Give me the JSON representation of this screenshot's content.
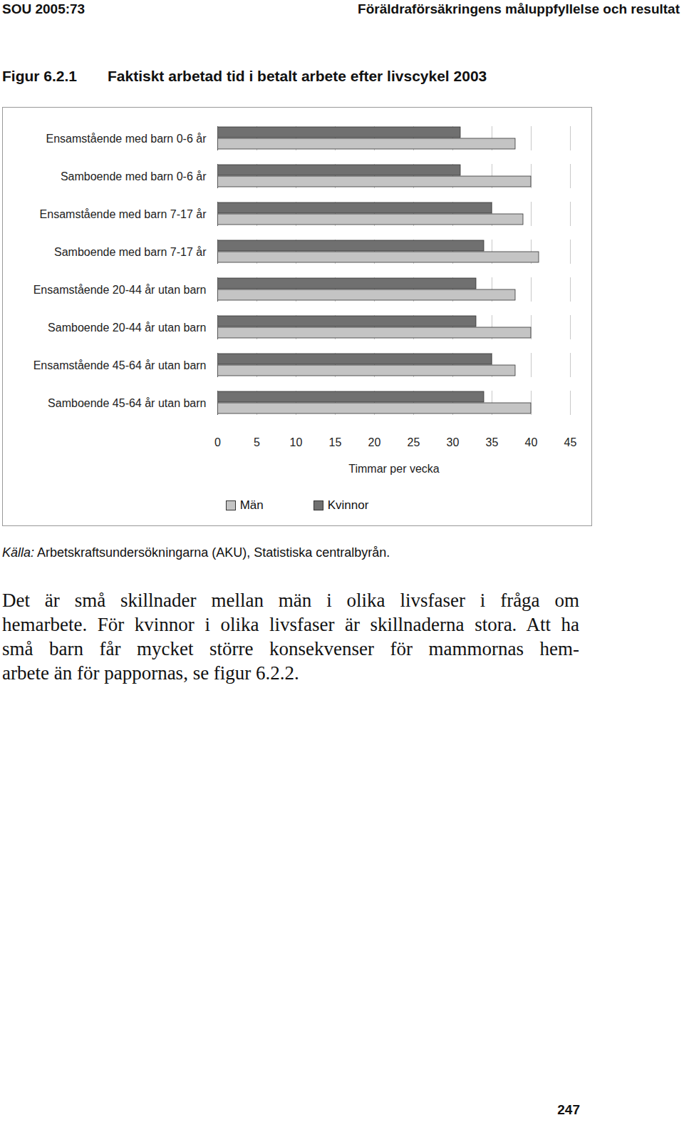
{
  "header": {
    "left": "SOU 2005:73",
    "right": "Föräldraförsäkringens måluppfyllelse och resultat"
  },
  "figure": {
    "label": "Figur 6.2.1",
    "title": "Faktiskt arbetad tid i betalt arbete efter livscykel 2003"
  },
  "chart_data": {
    "type": "bar",
    "orientation": "horizontal",
    "categories": [
      "Ensamstående med barn 0-6 år",
      "Samboende med barn 0-6 år",
      "Ensamstående med barn 7-17 år",
      "Samboende med barn 7-17 år",
      "Ensamstående 20-44 år utan barn",
      "Samboende 20-44 år utan barn",
      "Ensamstående 45-64 år utan barn",
      "Samboende 45-64 år utan barn"
    ],
    "series": [
      {
        "name": "Kvinnor",
        "color": "#707070",
        "values": [
          31,
          31,
          35,
          34,
          33,
          33,
          35,
          34
        ]
      },
      {
        "name": "Män",
        "color": "#c4c4c4",
        "values": [
          38,
          40,
          39,
          41,
          38,
          40,
          38,
          40
        ]
      }
    ],
    "x_label": "Timmar per vecka",
    "xlim": [
      0,
      45
    ],
    "xticks": [
      0,
      5,
      10,
      15,
      20,
      25,
      30,
      35,
      40,
      45
    ],
    "grid": true,
    "legend": "bottom"
  },
  "source": {
    "label": "Källa:",
    "text": "Arbetskraftsundersökningarna (AKU), Statistiska centralbyrån."
  },
  "body": [
    "Det är små skillnader mellan män i olika livsfaser i fråga om",
    "hemarbete. För kvinnor i olika livsfaser är skillnaderna stora. Att ha",
    "små barn får mycket större konsekvenser för mammornas hem-",
    "arbete än för pappornas, se figur 6.2.2."
  ],
  "page_number": "247"
}
